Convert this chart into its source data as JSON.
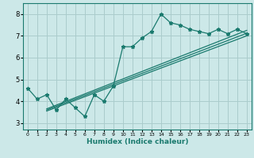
{
  "bg_color": "#cce8e8",
  "grid_color": "#aacccc",
  "line_color": "#1a7a6e",
  "xlabel": "Humidex (Indice chaleur)",
  "xlim": [
    -0.5,
    23.5
  ],
  "ylim": [
    2.7,
    8.5
  ],
  "xticks": [
    0,
    1,
    2,
    3,
    4,
    5,
    6,
    7,
    8,
    9,
    10,
    11,
    12,
    13,
    14,
    15,
    16,
    17,
    18,
    19,
    20,
    21,
    22,
    23
  ],
  "yticks": [
    3,
    4,
    5,
    6,
    7,
    8
  ],
  "main_x": [
    0,
    1,
    2,
    3,
    4,
    5,
    6,
    7,
    8,
    9,
    10,
    11,
    12,
    13,
    14,
    15,
    16,
    17,
    18,
    19,
    20,
    21,
    22,
    23
  ],
  "main_y": [
    4.6,
    4.1,
    4.3,
    3.6,
    4.1,
    3.7,
    3.3,
    4.3,
    4.0,
    4.7,
    6.5,
    6.5,
    6.9,
    7.2,
    8.0,
    7.6,
    7.5,
    7.3,
    7.2,
    7.1,
    7.3,
    7.1,
    7.3,
    7.1
  ],
  "line1_x": [
    2,
    23
  ],
  "line1_y": [
    3.55,
    7.0
  ],
  "line2_x": [
    2,
    23
  ],
  "line2_y": [
    3.65,
    7.25
  ],
  "line3_x": [
    2,
    23
  ],
  "line3_y": [
    3.6,
    7.12
  ]
}
